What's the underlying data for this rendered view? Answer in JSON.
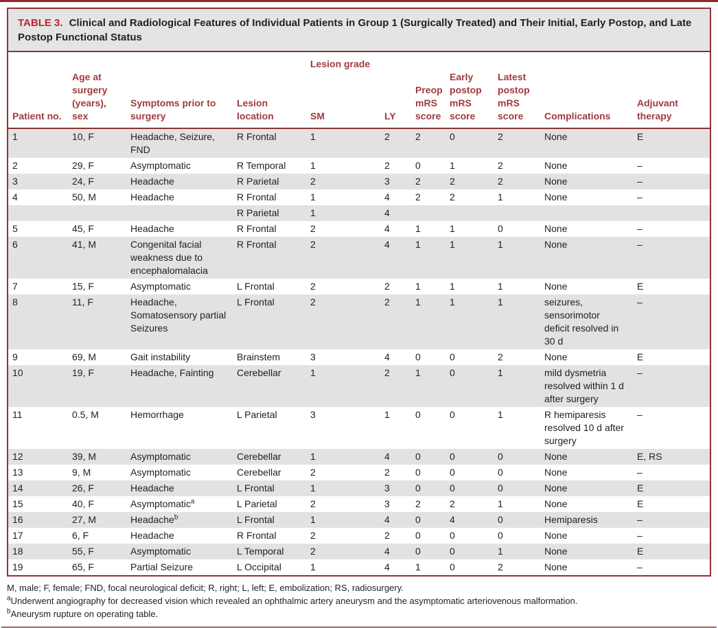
{
  "title": {
    "label": "TABLE 3.",
    "text": "Clinical and Radiological Features of Individual Patients in Group 1 (Surgically Treated) and Their Initial, Early Postop, and Late Postop Functional Status"
  },
  "table": {
    "span_header": "Lesion grade",
    "columns": [
      {
        "key": "patient_no",
        "label": "Patient no."
      },
      {
        "key": "age_sex",
        "label": "Age at surgery (years), sex"
      },
      {
        "key": "symptoms",
        "label": "Symptoms prior to surgery"
      },
      {
        "key": "location",
        "label": "Lesion location"
      },
      {
        "key": "sm",
        "label": "SM"
      },
      {
        "key": "ly",
        "label": "LY"
      },
      {
        "key": "preop_mrs",
        "label": "Preop mRS score"
      },
      {
        "key": "early_mrs",
        "label": "Early postop mRS score"
      },
      {
        "key": "latest_mrs",
        "label": "Latest postop mRS score"
      },
      {
        "key": "complications",
        "label": "Complications"
      },
      {
        "key": "adjuvant",
        "label": "Adjuvant therapy"
      }
    ],
    "rows": [
      {
        "patient_no": "1",
        "age_sex": "10, F",
        "symptoms": "Headache, Seizure, FND",
        "location": "R Frontal",
        "sm": "1",
        "ly": "2",
        "preop_mrs": "2",
        "early_mrs": "0",
        "latest_mrs": "2",
        "complications": "None",
        "adjuvant": "E"
      },
      {
        "patient_no": "2",
        "age_sex": "29, F",
        "symptoms": "Asymptomatic",
        "location": "R Temporal",
        "sm": "1",
        "ly": "2",
        "preop_mrs": "0",
        "early_mrs": "1",
        "latest_mrs": "2",
        "complications": "None",
        "adjuvant": "–"
      },
      {
        "patient_no": "3",
        "age_sex": "24, F",
        "symptoms": "Headache",
        "location": "R Parietal",
        "sm": "2",
        "ly": "3",
        "preop_mrs": "2",
        "early_mrs": "2",
        "latest_mrs": "2",
        "complications": "None",
        "adjuvant": "–"
      },
      {
        "patient_no": "4",
        "age_sex": "50, M",
        "symptoms": "Headache",
        "location": "R Frontal",
        "sm": "1",
        "ly": "4",
        "preop_mrs": "2",
        "early_mrs": "2",
        "latest_mrs": "1",
        "complications": "None",
        "adjuvant": "–"
      },
      {
        "patient_no": "",
        "age_sex": "",
        "symptoms": "",
        "location": "R Parietal",
        "sm": "1",
        "ly": "4",
        "preop_mrs": "",
        "early_mrs": "",
        "latest_mrs": "",
        "complications": "",
        "adjuvant": ""
      },
      {
        "patient_no": "5",
        "age_sex": "45, F",
        "symptoms": "Headache",
        "location": "R Frontal",
        "sm": "2",
        "ly": "4",
        "preop_mrs": "1",
        "early_mrs": "1",
        "latest_mrs": "0",
        "complications": "None",
        "adjuvant": "–"
      },
      {
        "patient_no": "6",
        "age_sex": "41, M",
        "symptoms": "Congenital facial weakness due to encephalomalacia",
        "location": "R Frontal",
        "sm": "2",
        "ly": "4",
        "preop_mrs": "1",
        "early_mrs": "1",
        "latest_mrs": "1",
        "complications": "None",
        "adjuvant": "–"
      },
      {
        "patient_no": "7",
        "age_sex": "15, F",
        "symptoms": "Asymptomatic",
        "location": "L Frontal",
        "sm": "2",
        "ly": "2",
        "preop_mrs": "1",
        "early_mrs": "1",
        "latest_mrs": "1",
        "complications": "None",
        "adjuvant": "E"
      },
      {
        "patient_no": "8",
        "age_sex": "11, F",
        "symptoms": "Headache, Somatosensory partial Seizures",
        "location": "L Frontal",
        "sm": "2",
        "ly": "2",
        "preop_mrs": "1",
        "early_mrs": "1",
        "latest_mrs": "1",
        "complications": "seizures, sensorimotor deficit resolved in 30 d",
        "adjuvant": "–"
      },
      {
        "patient_no": "9",
        "age_sex": "69, M",
        "symptoms": "Gait instability",
        "location": "Brainstem",
        "sm": "3",
        "ly": "4",
        "preop_mrs": "0",
        "early_mrs": "0",
        "latest_mrs": "2",
        "complications": "None",
        "adjuvant": "E"
      },
      {
        "patient_no": "10",
        "age_sex": "19, F",
        "symptoms": "Headache, Fainting",
        "location": "Cerebellar",
        "sm": "1",
        "ly": "2",
        "preop_mrs": "1",
        "early_mrs": "0",
        "latest_mrs": "1",
        "complications": "mild dysmetria resolved within 1 d after surgery",
        "adjuvant": "–"
      },
      {
        "patient_no": "11",
        "age_sex": "0.5, M",
        "symptoms": "Hemorrhage",
        "location": "L Parietal",
        "sm": "3",
        "ly": "1",
        "preop_mrs": "0",
        "early_mrs": "0",
        "latest_mrs": "1",
        "complications": "R hemiparesis resolved 10 d after surgery",
        "adjuvant": "–"
      },
      {
        "patient_no": "12",
        "age_sex": "39, M",
        "symptoms": "Asymptomatic",
        "location": "Cerebellar",
        "sm": "1",
        "ly": "4",
        "preop_mrs": "0",
        "early_mrs": "0",
        "latest_mrs": "0",
        "complications": "None",
        "adjuvant": "E, RS"
      },
      {
        "patient_no": "13",
        "age_sex": "9, M",
        "symptoms": "Asymptomatic",
        "location": "Cerebellar",
        "sm": "2",
        "ly": "2",
        "preop_mrs": "0",
        "early_mrs": "0",
        "latest_mrs": "0",
        "complications": "None",
        "adjuvant": "–"
      },
      {
        "patient_no": "14",
        "age_sex": "26, F",
        "symptoms": "Headache",
        "location": "L Frontal",
        "sm": "1",
        "ly": "3",
        "preop_mrs": "0",
        "early_mrs": "0",
        "latest_mrs": "0",
        "complications": "None",
        "adjuvant": "E"
      },
      {
        "patient_no": "15",
        "age_sex": "40, F",
        "symptoms": "Asymptomatic",
        "symptoms_sup": "a",
        "location": "L Parietal",
        "sm": "2",
        "ly": "3",
        "preop_mrs": "2",
        "early_mrs": "2",
        "latest_mrs": "1",
        "complications": "None",
        "adjuvant": "E"
      },
      {
        "patient_no": "16",
        "age_sex": "27, M",
        "symptoms": "Headache",
        "symptoms_sup": "b",
        "location": "L Frontal",
        "sm": "1",
        "ly": "4",
        "preop_mrs": "0",
        "early_mrs": "4",
        "latest_mrs": "0",
        "complications": "Hemiparesis",
        "adjuvant": "–"
      },
      {
        "patient_no": "17",
        "age_sex": "6, F",
        "symptoms": "Headache",
        "location": "R Frontal",
        "sm": "2",
        "ly": "2",
        "preop_mrs": "0",
        "early_mrs": "0",
        "latest_mrs": "0",
        "complications": "None",
        "adjuvant": "–"
      },
      {
        "patient_no": "18",
        "age_sex": "55, F",
        "symptoms": "Asymptomatic",
        "location": "L Temporal",
        "sm": "2",
        "ly": "4",
        "preop_mrs": "0",
        "early_mrs": "0",
        "latest_mrs": "1",
        "complications": "None",
        "adjuvant": "E"
      },
      {
        "patient_no": "19",
        "age_sex": "65, F",
        "symptoms": "Partial Seizure",
        "location": "L Occipital",
        "sm": "1",
        "ly": "4",
        "preop_mrs": "1",
        "early_mrs": "0",
        "latest_mrs": "2",
        "complications": "None",
        "adjuvant": "–"
      }
    ]
  },
  "footnotes": {
    "abbreviations": "M, male; F, female; FND, focal neurological deficit; R, right; L, left; E, embolization; RS, radiosurgery.",
    "note_a_sup": "a",
    "note_a": "Underwent angiography for decreased vision which revealed an ophthalmic artery aneurysm and the asymptomatic arteriovenous malformation.",
    "note_b_sup": "b",
    "note_b": "Aneurysm rupture on operating table."
  },
  "colors": {
    "rule_red": "#8c2b2e",
    "border_red": "#8f3134",
    "header_text_red": "#a23a3e",
    "title_label_red": "#b6272e",
    "stripe_grey": "#e2e2e2",
    "title_bg_grey": "#e4e4e4"
  }
}
